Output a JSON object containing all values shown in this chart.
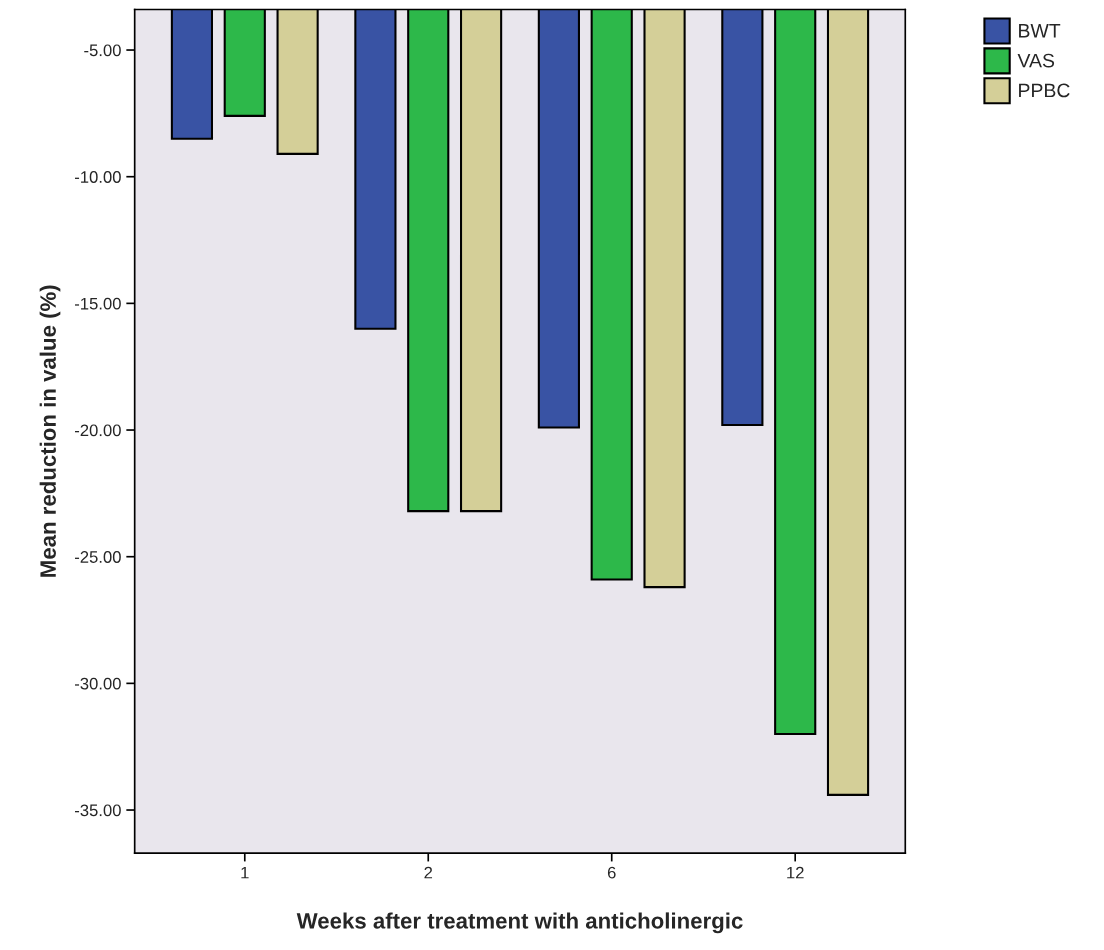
{
  "chart_data": {
    "type": "bar",
    "xlabel": "Weeks after treatment with anticholinergic",
    "ylabel": "Mean reduction in value (%)",
    "categories": [
      "1",
      "2",
      "6",
      "12"
    ],
    "series": [
      {
        "name": "BWT",
        "color": "#3953a4",
        "values": [
          -8.5,
          -16.0,
          -19.9,
          -19.8
        ]
      },
      {
        "name": "VAS",
        "color": "#2db84a",
        "values": [
          -7.6,
          -23.2,
          -25.9,
          -32.0
        ]
      },
      {
        "name": "PPBC",
        "color": "#d4cf98",
        "values": [
          -9.1,
          -23.2,
          -26.2,
          -34.4
        ]
      }
    ],
    "ylim": [
      -36.7,
      -3.4
    ],
    "yticks": [
      {
        "value": -35,
        "label": "-35.00"
      },
      {
        "value": -30,
        "label": "-30.00"
      },
      {
        "value": -25,
        "label": "-25.00"
      },
      {
        "value": -20,
        "label": "-20.00"
      },
      {
        "value": -15,
        "label": "-15.00"
      },
      {
        "value": -10,
        "label": "-10.00"
      },
      {
        "value": -5,
        "label": "-5.00"
      }
    ],
    "grid": false,
    "legend": "top right"
  }
}
